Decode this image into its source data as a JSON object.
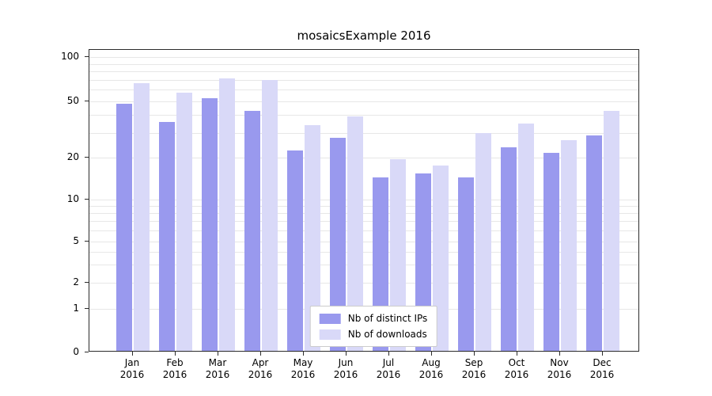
{
  "chart_data": {
    "type": "bar",
    "title": "mosaicsExample 2016",
    "categories": [
      "Jan",
      "Feb",
      "Mar",
      "Apr",
      "May",
      "Jun",
      "Jul",
      "Aug",
      "Sep",
      "Oct",
      "Nov",
      "Dec"
    ],
    "category_year": "2016",
    "series": [
      {
        "name": "Nb of distinct IPs",
        "color": "#9999ee",
        "values": [
          47,
          35,
          51,
          42,
          22,
          27,
          14,
          15,
          14,
          23,
          21,
          28
        ]
      },
      {
        "name": "Nb of downloads",
        "color": "#d9d9f8",
        "values": [
          65,
          56,
          70,
          68,
          33,
          38,
          19,
          17,
          29,
          34,
          26,
          42
        ]
      }
    ],
    "yscale": "log-like",
    "ylim": [
      0,
      100
    ],
    "yticks": [
      0,
      1,
      2,
      5,
      10,
      20,
      50,
      100
    ],
    "minor_gridlines": [
      3,
      4,
      6,
      7,
      8,
      9,
      30,
      40,
      60,
      70,
      80,
      90
    ],
    "grid": true,
    "legend_position": "lower center",
    "colors": {
      "bar_dark": "#9999ee",
      "bar_light": "#d9d9f8",
      "gridline": "#e7e7e7",
      "axis": "#2b2b2b"
    }
  }
}
